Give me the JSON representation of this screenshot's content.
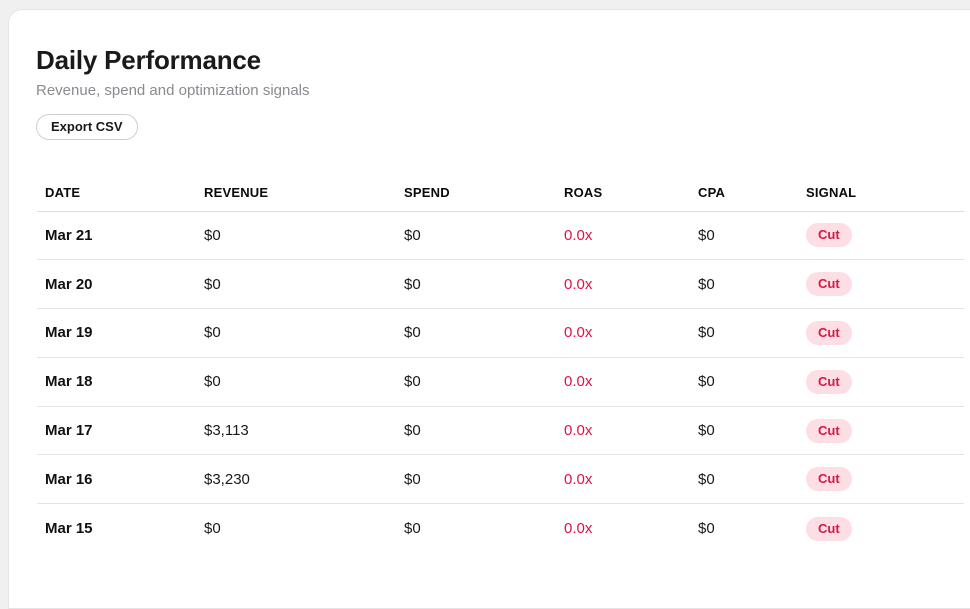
{
  "page": {
    "title": "Daily Performance",
    "subtitle": "Revenue, spend and optimization signals",
    "export_label": "Export CSV"
  },
  "colors": {
    "roas_negative_text": "#e11048",
    "signal_badge_bg": "#fcdee4",
    "signal_badge_text": "#d41a45",
    "page_background": "#f0f0f1",
    "card_background": "#ffffff"
  },
  "table": {
    "columns": [
      "DATE",
      "REVENUE",
      "SPEND",
      "ROAS",
      "CPA",
      "SIGNAL"
    ],
    "rows": [
      {
        "date": "Mar 21",
        "revenue": "$0",
        "spend": "$0",
        "roas": "0.0x",
        "cpa": "$0",
        "signal": "Cut"
      },
      {
        "date": "Mar 20",
        "revenue": "$0",
        "spend": "$0",
        "roas": "0.0x",
        "cpa": "$0",
        "signal": "Cut"
      },
      {
        "date": "Mar 19",
        "revenue": "$0",
        "spend": "$0",
        "roas": "0.0x",
        "cpa": "$0",
        "signal": "Cut"
      },
      {
        "date": "Mar 18",
        "revenue": "$0",
        "spend": "$0",
        "roas": "0.0x",
        "cpa": "$0",
        "signal": "Cut"
      },
      {
        "date": "Mar 17",
        "revenue": "$3,113",
        "spend": "$0",
        "roas": "0.0x",
        "cpa": "$0",
        "signal": "Cut"
      },
      {
        "date": "Mar 16",
        "revenue": "$3,230",
        "spend": "$0",
        "roas": "0.0x",
        "cpa": "$0",
        "signal": "Cut"
      },
      {
        "date": "Mar 15",
        "revenue": "$0",
        "spend": "$0",
        "roas": "0.0x",
        "cpa": "$0",
        "signal": "Cut"
      }
    ]
  }
}
